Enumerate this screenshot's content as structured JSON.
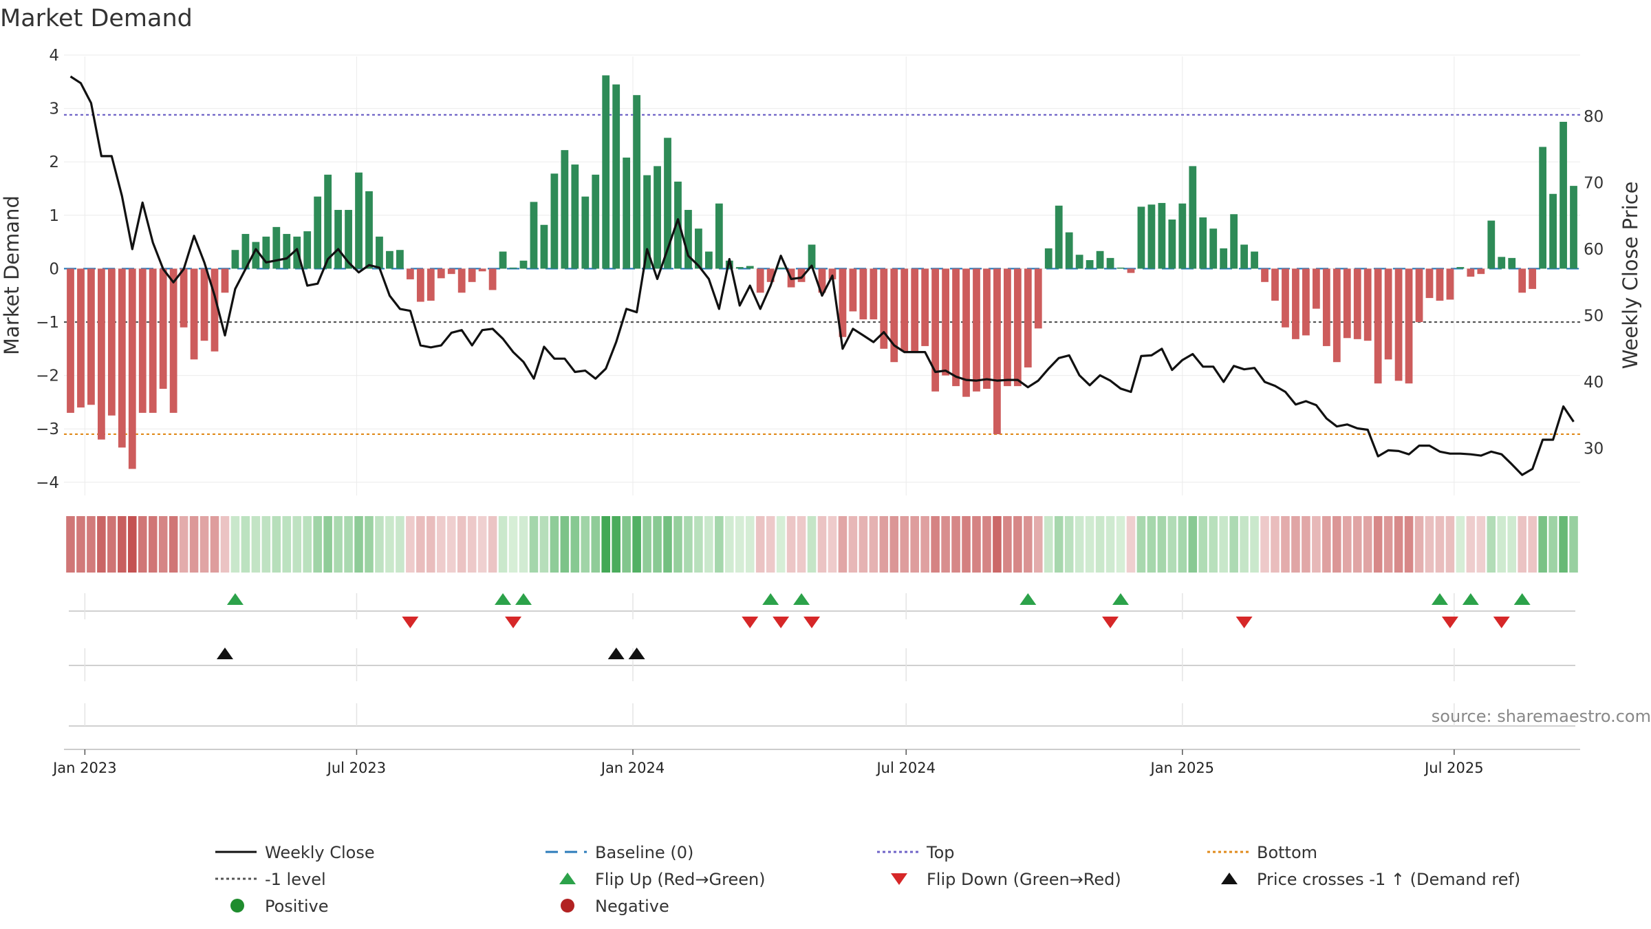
{
  "chart_data": {
    "type": "bar",
    "title": "Market Demand",
    "ylabel": "Market Demand",
    "y2label": "Weekly Close Price",
    "ylim": [
      -4.35,
      4.05
    ],
    "y2lim": [
      22.5,
      91.5
    ],
    "yticks": [
      "4",
      "3",
      "2",
      "1",
      "0",
      "−1",
      "−2",
      "−3",
      "−4"
    ],
    "y2ticks": [
      "80",
      "70",
      "60",
      "50",
      "40",
      "30"
    ],
    "x_start": "2022-12-19",
    "x_end": "2025-09-22",
    "xticks": [
      "Jan 2023",
      "Jul 2023",
      "Jan 2024",
      "Jul 2024",
      "Jan 2025",
      "Jul 2025"
    ],
    "levels": {
      "top": 2.88,
      "bottom": -3.1,
      "minus_one": -1,
      "baseline": 0
    },
    "series": [
      {
        "name": "Market Demand",
        "values": [
          -2.7,
          -2.6,
          -2.55,
          -3.2,
          -2.75,
          -3.35,
          -3.75,
          -2.7,
          -2.7,
          -2.25,
          -2.7,
          -1.1,
          -1.7,
          -1.35,
          -1.55,
          -0.45,
          0.35,
          0.65,
          0.5,
          0.6,
          0.78,
          0.65,
          0.6,
          0.7,
          1.35,
          1.76,
          1.1,
          1.1,
          1.8,
          1.45,
          0.6,
          0.33,
          0.35,
          -0.2,
          -0.62,
          -0.6,
          -0.18,
          -0.1,
          -0.45,
          -0.25,
          -0.05,
          -0.4,
          0.32,
          0.02,
          0.15,
          1.25,
          0.82,
          1.78,
          2.22,
          1.95,
          1.35,
          1.76,
          3.62,
          3.45,
          2.08,
          3.25,
          1.75,
          1.92,
          2.45,
          1.63,
          1.1,
          0.75,
          0.32,
          1.22,
          0.15,
          0.03,
          0.05,
          -0.45,
          -0.25,
          0.02,
          -0.35,
          -0.25,
          0.45,
          -0.45,
          -0.2,
          -1.28,
          -0.8,
          -0.95,
          -0.95,
          -1.5,
          -1.75,
          -1.55,
          -1.55,
          -1.45,
          -2.3,
          -2.0,
          -2.2,
          -2.4,
          -2.3,
          -2.25,
          -3.1,
          -2.2,
          -2.2,
          -1.85,
          -1.12,
          0.38,
          1.18,
          0.68,
          0.26,
          0.16,
          0.33,
          0.2,
          0.02,
          -0.08,
          1.16,
          1.2,
          1.23,
          0.92,
          1.22,
          1.92,
          0.96,
          0.75,
          0.38,
          1.02,
          0.45,
          0.32,
          -0.25,
          -0.6,
          -1.1,
          -1.32,
          -1.25,
          -0.75,
          -1.45,
          -1.75,
          -1.3,
          -1.32,
          -1.35,
          -2.15,
          -1.7,
          -2.1,
          -2.15,
          -1.0,
          -0.55,
          -0.6,
          -0.58,
          0.03,
          -0.15,
          -0.1,
          0.9,
          0.22,
          0.2,
          -0.45,
          -0.38,
          2.28,
          1.4,
          2.75,
          1.55
        ]
      },
      {
        "name": "Weekly Close",
        "values": [
          86,
          85,
          82,
          74,
          74,
          68,
          60,
          67,
          61,
          57,
          55,
          57,
          62,
          58,
          53,
          47,
          54,
          57,
          60,
          58,
          58.3,
          58.6,
          60,
          54.5,
          54.8,
          58.5,
          60,
          58,
          56.5,
          57.6,
          57.2,
          53,
          51,
          50.7,
          45.5,
          45.2,
          45.5,
          47.4,
          47.8,
          45.5,
          47.8,
          48,
          46.5,
          44.5,
          43,
          40.5,
          45.3,
          43.5,
          43.5,
          41.5,
          41.7,
          40.5,
          42,
          46,
          51,
          50.5,
          60,
          55.5,
          60,
          64.5,
          59,
          57.5,
          55.5,
          51,
          58.5,
          51.5,
          54.5,
          51,
          54.5,
          59,
          55.5,
          55.7,
          57.5,
          53,
          56,
          45,
          48,
          47,
          46,
          47.5,
          45.5,
          44.5,
          44.5,
          44.5,
          41.5,
          41.7,
          40.8,
          40.3,
          40.2,
          40.4,
          40.2,
          40.3,
          40.3,
          39.2,
          40.2,
          42,
          43.6,
          44,
          41,
          39.5,
          41,
          40.2,
          39,
          38.5,
          43.9,
          44,
          45,
          41.8,
          43.3,
          44.2,
          42.3,
          42.3,
          40,
          42.4,
          41.9,
          42.1,
          40,
          39.4,
          38.5,
          36.6,
          37.1,
          36.5,
          34.5,
          33.3,
          33.6,
          33,
          32.8,
          28.8,
          29.7,
          29.6,
          29.1,
          30.4,
          30.4,
          29.5,
          29.2,
          29.2,
          29.1,
          28.9,
          29.5,
          29.1,
          27.6,
          26,
          26.9,
          31.3,
          31.3,
          36.3,
          34
        ]
      }
    ],
    "markers": {
      "flip_up_weeks": [
        16,
        42,
        44,
        68,
        71,
        93,
        102,
        133,
        136,
        141
      ],
      "flip_down_weeks": [
        33,
        43,
        66,
        69,
        72,
        101,
        114,
        134,
        139
      ],
      "price_cross_weeks": [
        15,
        53,
        55
      ]
    },
    "source": "source: sharemaestro.com",
    "legend": [
      {
        "label": "Weekly Close",
        "kind": "line",
        "color": "#111111"
      },
      {
        "label": "Baseline (0)",
        "kind": "dash",
        "color": "#2b7bba"
      },
      {
        "label": "Top",
        "kind": "dot",
        "color": "#6f63c7"
      },
      {
        "label": "Bottom",
        "kind": "dot",
        "color": "#e08a1a"
      },
      {
        "label": "-1 level",
        "kind": "dot",
        "color": "#555555"
      },
      {
        "label": "Flip Up (Red→Green)",
        "kind": "tri-up",
        "color": "#2ca24a"
      },
      {
        "label": "Flip Down (Green→Red)",
        "kind": "tri-down",
        "color": "#d62728"
      },
      {
        "label": "Price crosses -1 ↑ (Demand ref)",
        "kind": "tri-up",
        "color": "#111111"
      },
      {
        "label": "Positive",
        "kind": "circle",
        "color": "#1f8c2e"
      },
      {
        "label": "Negative",
        "kind": "circle",
        "color": "#b22222"
      }
    ]
  }
}
